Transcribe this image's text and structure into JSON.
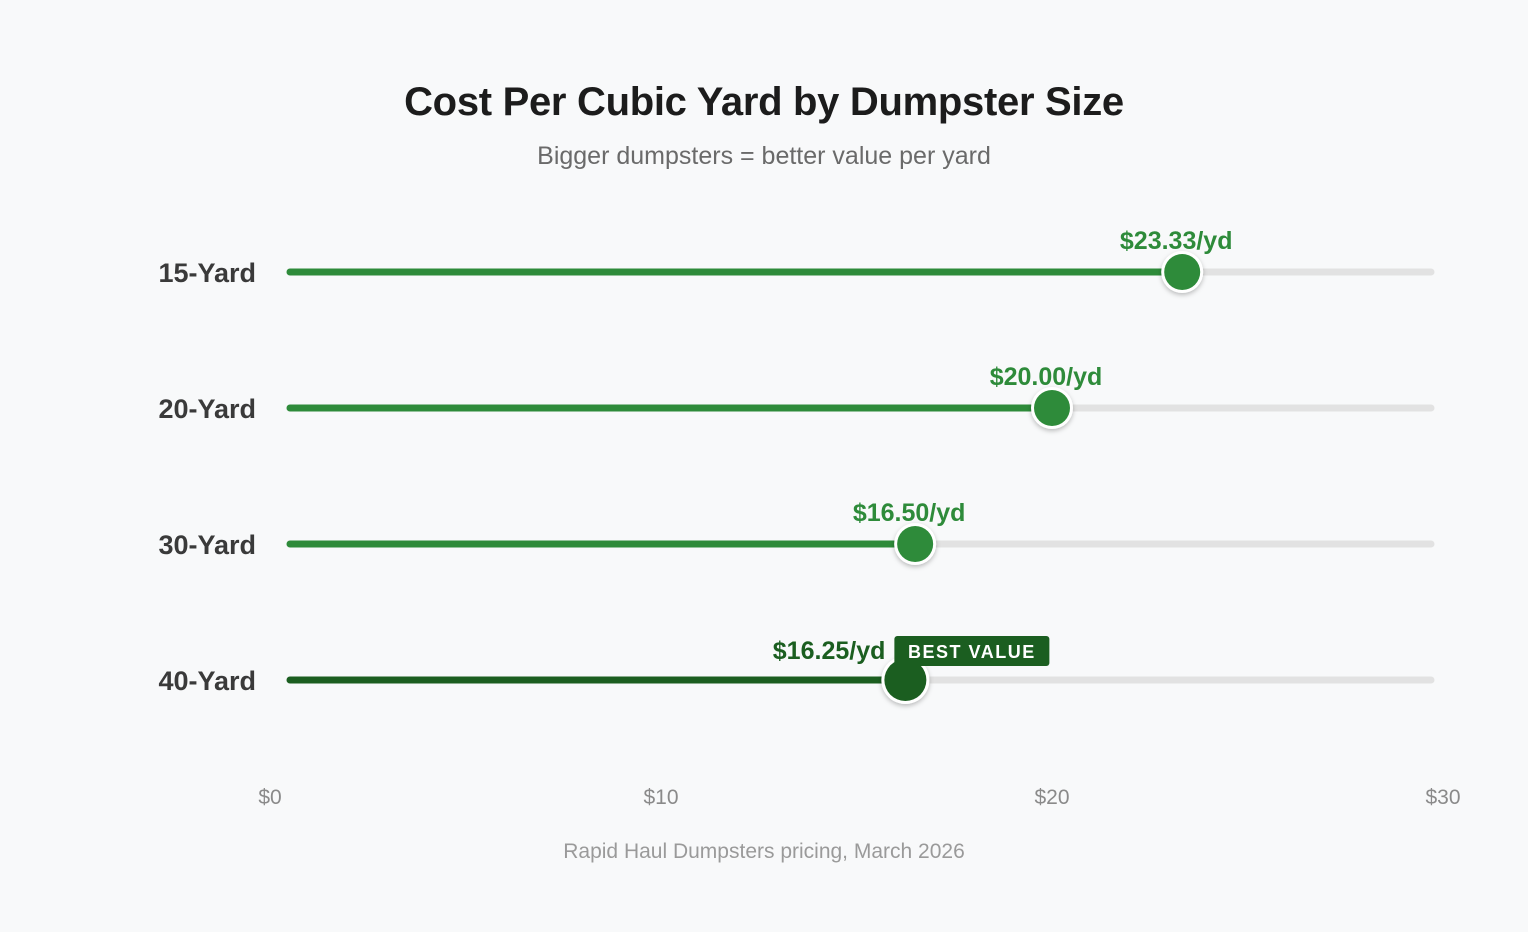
{
  "chart_data": {
    "type": "lollipop",
    "title": "Cost Per Cubic Yard by Dumpster Size",
    "subtitle": "Bigger dumpsters = better value per yard",
    "source": "Rapid Haul Dumpsters pricing, March 2026",
    "categories": [
      "15-Yard",
      "20-Yard",
      "30-Yard",
      "40-Yard"
    ],
    "values": [
      23.33,
      20.0,
      16.5,
      16.25
    ],
    "value_labels": [
      "$23.33/yd",
      "$20.00/yd",
      "$16.50/yd",
      "$16.25/yd"
    ],
    "highlight": {
      "category": "40-Yard",
      "badge": "BEST VALUE"
    },
    "xlim": [
      0,
      30
    ],
    "x_ticks": [
      0,
      10,
      20,
      30
    ],
    "x_tick_labels": [
      "$0",
      "$10",
      "$20",
      "$30"
    ],
    "grid": false,
    "legend": "none",
    "colors": {
      "bar": "#2e8b3a",
      "highlight": "#1b5e20",
      "label": "#2e8b3a",
      "track": "#e2e2e2"
    }
  }
}
